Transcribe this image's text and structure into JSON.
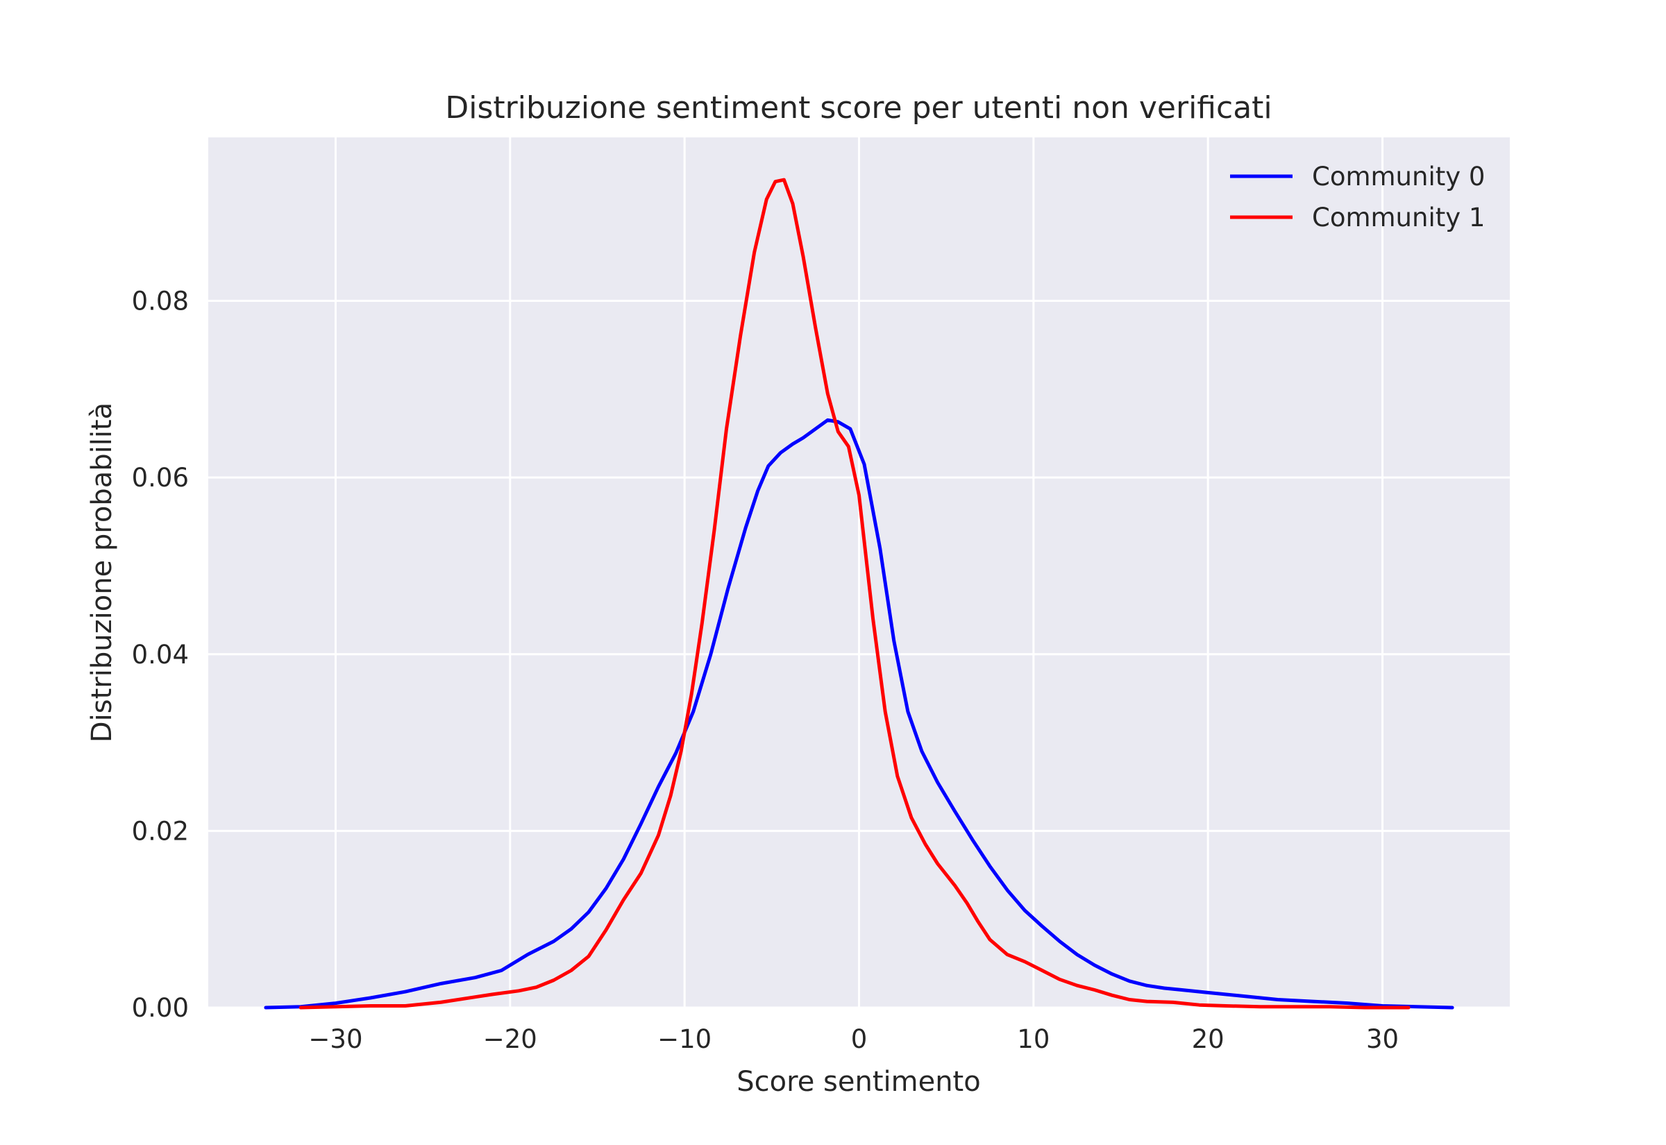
{
  "chart_data": {
    "type": "line",
    "title": "Distribuzione sentiment score per utenti non verificati",
    "xlabel": "Score sentimento",
    "ylabel": "Distribuzione probabilità",
    "xlim": [
      -37.3,
      37.3
    ],
    "ylim": [
      0,
      0.0985
    ],
    "xticks": [
      -30,
      -20,
      -10,
      0,
      10,
      20,
      30
    ],
    "xtick_labels": [
      "−30",
      "−20",
      "−10",
      "0",
      "10",
      "20",
      "30"
    ],
    "yticks": [
      0,
      0.02,
      0.04,
      0.06,
      0.08
    ],
    "ytick_labels": [
      "0.00",
      "0.02",
      "0.04",
      "0.06",
      "0.08"
    ],
    "grid": true,
    "background": "#eaeaf2",
    "legend_position": "top-right",
    "series": [
      {
        "name": "Community 0",
        "color": "#0000ff",
        "x": [
          -34,
          -32,
          -30,
          -28,
          -26,
          -24,
          -22,
          -20.5,
          -19,
          -17.5,
          -16.5,
          -15.5,
          -14.5,
          -13.5,
          -12.5,
          -11.5,
          -10.5,
          -9.5,
          -8.5,
          -7.5,
          -6.5,
          -5.8,
          -5.2,
          -4.5,
          -3.8,
          -3.2,
          -2.5,
          -1.8,
          -1.2,
          -0.5,
          0.3,
          1.2,
          2,
          2.8,
          3.6,
          4.5,
          5.5,
          6.5,
          7.5,
          8.5,
          9.5,
          10.5,
          11.5,
          12.5,
          13.5,
          14.5,
          15.5,
          16.5,
          17.5,
          18.5,
          20,
          22,
          24,
          26,
          28,
          30,
          32,
          34
        ],
        "y": [
          0.0,
          0.0001,
          0.0005,
          0.0011,
          0.0018,
          0.0027,
          0.0034,
          0.0042,
          0.006,
          0.0075,
          0.0089,
          0.0108,
          0.0135,
          0.0168,
          0.0208,
          0.025,
          0.0288,
          0.0335,
          0.04,
          0.0475,
          0.0543,
          0.0585,
          0.0613,
          0.0628,
          0.0638,
          0.0645,
          0.0655,
          0.0665,
          0.0663,
          0.0655,
          0.0615,
          0.052,
          0.0415,
          0.0335,
          0.029,
          0.0255,
          0.0222,
          0.019,
          0.016,
          0.0133,
          0.011,
          0.0092,
          0.0075,
          0.006,
          0.0048,
          0.0038,
          0.003,
          0.0025,
          0.0022,
          0.002,
          0.0017,
          0.0013,
          0.0009,
          0.0007,
          0.0005,
          0.0002,
          0.0001,
          0.0
        ]
      },
      {
        "name": "Community 1",
        "color": "#ff0000",
        "x": [
          -32,
          -30,
          -28,
          -26,
          -24,
          -22,
          -21,
          -19.5,
          -18.5,
          -17.5,
          -16.5,
          -15.5,
          -14.5,
          -13.5,
          -12.5,
          -11.5,
          -10.8,
          -10.2,
          -9.6,
          -9,
          -8.3,
          -7.6,
          -6.8,
          -6,
          -5.3,
          -4.8,
          -4.3,
          -3.8,
          -3.2,
          -2.5,
          -1.8,
          -1.2,
          -0.6,
          0,
          0.8,
          1.5,
          2.2,
          3,
          3.8,
          4.5,
          5.5,
          6.2,
          6.8,
          7.5,
          8.5,
          9.5,
          10.5,
          11.5,
          12.5,
          13.5,
          14.5,
          15.5,
          16.5,
          18,
          19.5,
          21,
          23,
          25,
          27,
          29,
          31.5
        ],
        "y": [
          0.0,
          0.0001,
          0.0002,
          0.0002,
          0.0006,
          0.0012,
          0.0015,
          0.0019,
          0.0023,
          0.0031,
          0.0042,
          0.0058,
          0.0088,
          0.0122,
          0.0152,
          0.0195,
          0.024,
          0.029,
          0.0355,
          0.0435,
          0.054,
          0.0655,
          0.076,
          0.0855,
          0.0915,
          0.0935,
          0.0937,
          0.091,
          0.085,
          0.077,
          0.0695,
          0.0652,
          0.0635,
          0.058,
          0.044,
          0.0335,
          0.0262,
          0.0215,
          0.0185,
          0.0163,
          0.0138,
          0.0118,
          0.0098,
          0.0077,
          0.006,
          0.0052,
          0.0042,
          0.0032,
          0.0025,
          0.002,
          0.0014,
          0.0009,
          0.0007,
          0.0006,
          0.0003,
          0.0002,
          0.0001,
          0.0001,
          0.0001,
          0.0,
          0.0
        ]
      }
    ]
  }
}
